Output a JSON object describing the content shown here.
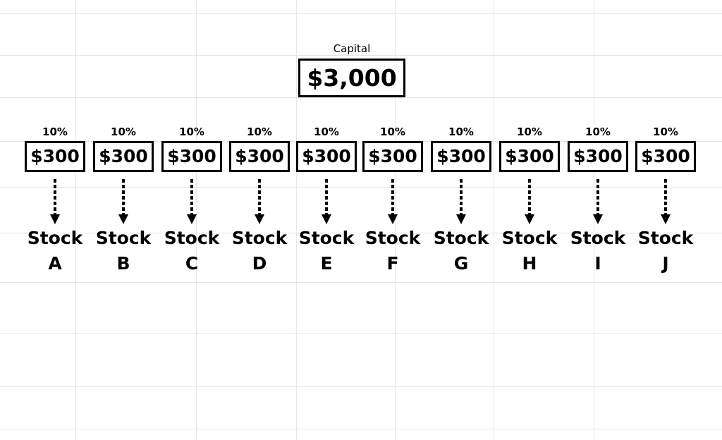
{
  "capital": {
    "label": "Capital",
    "amount": "$3,000"
  },
  "allocations": [
    {
      "percent": "10%",
      "amount": "$300",
      "stock": "Stock",
      "letter": "A"
    },
    {
      "percent": "10%",
      "amount": "$300",
      "stock": "Stock",
      "letter": "B"
    },
    {
      "percent": "10%",
      "amount": "$300",
      "stock": "Stock",
      "letter": "C"
    },
    {
      "percent": "10%",
      "amount": "$300",
      "stock": "Stock",
      "letter": "D"
    },
    {
      "percent": "10%",
      "amount": "$300",
      "stock": "Stock",
      "letter": "E"
    },
    {
      "percent": "10%",
      "amount": "$300",
      "stock": "Stock",
      "letter": "F"
    },
    {
      "percent": "10%",
      "amount": "$300",
      "stock": "Stock",
      "letter": "G"
    },
    {
      "percent": "10%",
      "amount": "$300",
      "stock": "Stock",
      "letter": "H"
    },
    {
      "percent": "10%",
      "amount": "$300",
      "stock": "Stock",
      "letter": "I"
    },
    {
      "percent": "10%",
      "amount": "$300",
      "stock": "Stock",
      "letter": "J"
    }
  ]
}
